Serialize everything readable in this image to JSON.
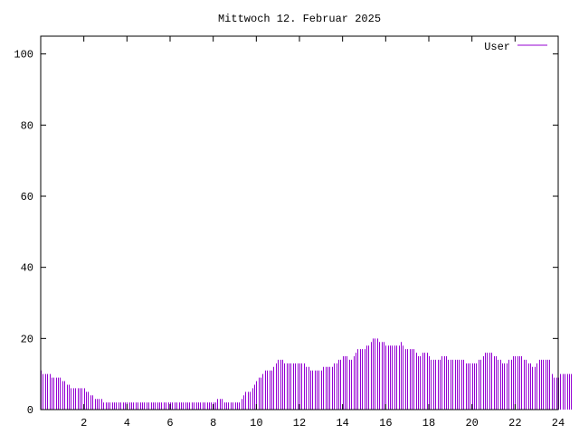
{
  "chart_data": {
    "type": "bar",
    "title": "Mittwoch 12. Februar 2025",
    "xlabel": "",
    "ylabel": "",
    "xlim": [
      0,
      24
    ],
    "ylim": [
      0,
      105
    ],
    "xticks": [
      "2",
      "4",
      "6",
      "8",
      "10",
      "12",
      "14",
      "16",
      "18",
      "20",
      "22",
      "24"
    ],
    "yticks": [
      "0",
      "20",
      "40",
      "60",
      "80",
      "100"
    ],
    "grid": false,
    "legend_position": "top-right",
    "series": [
      {
        "name": "User",
        "color": "#9400d3",
        "x_start": 0,
        "x_step": 0.1,
        "values": [
          11,
          10,
          10,
          10,
          10,
          9,
          9,
          9,
          9,
          9,
          8,
          8,
          7,
          7,
          6,
          6,
          6,
          6,
          6,
          6,
          6,
          5,
          5,
          4,
          4,
          3,
          3,
          3,
          3,
          2,
          2,
          2,
          2,
          2,
          2,
          2,
          2,
          2,
          2,
          2,
          2,
          2,
          2,
          2,
          2,
          2,
          2,
          2,
          2,
          2,
          2,
          2,
          2,
          2,
          2,
          2,
          2,
          2,
          2,
          2,
          2,
          2,
          2,
          2,
          2,
          2,
          2,
          2,
          2,
          2,
          2,
          2,
          2,
          2,
          2,
          2,
          2,
          2,
          2,
          2,
          2,
          2,
          3,
          3,
          3,
          2,
          2,
          2,
          2,
          2,
          2,
          2,
          2,
          3,
          4,
          5,
          5,
          5,
          6,
          7,
          8,
          9,
          9,
          10,
          11,
          11,
          11,
          11,
          12,
          13,
          14,
          14,
          14,
          13,
          13,
          13,
          13,
          13,
          13,
          13,
          13,
          13,
          13,
          12,
          12,
          11,
          11,
          11,
          11,
          11,
          11,
          12,
          12,
          12,
          12,
          12,
          13,
          13,
          14,
          14,
          15,
          15,
          15,
          14,
          14,
          15,
          16,
          17,
          17,
          17,
          17,
          18,
          18,
          19,
          20,
          20,
          20,
          19,
          19,
          19,
          18,
          18,
          18,
          18,
          18,
          18,
          18,
          19,
          18,
          17,
          17,
          17,
          17,
          17,
          16,
          15,
          15,
          16,
          16,
          16,
          15,
          14,
          14,
          14,
          14,
          14,
          15,
          15,
          15,
          14,
          14,
          14,
          14,
          14,
          14,
          14,
          14,
          13,
          13,
          13,
          13,
          13,
          13,
          14,
          14,
          15,
          16,
          16,
          16,
          16,
          15,
          15,
          14,
          14,
          13,
          13,
          13,
          14,
          14,
          15,
          15,
          15,
          15,
          15,
          14,
          14,
          13,
          13,
          12,
          12,
          13,
          14,
          14,
          14,
          14,
          14,
          14,
          10,
          9,
          9,
          9,
          10,
          10,
          10,
          10,
          10,
          10
        ]
      }
    ]
  }
}
